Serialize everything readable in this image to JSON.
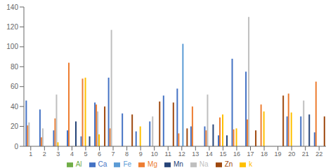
{
  "chart_data": {
    "type": "bar",
    "categories": [
      1,
      2,
      3,
      4,
      5,
      6,
      7,
      8,
      9,
      10,
      11,
      12,
      13,
      14,
      15,
      16,
      17,
      18,
      19,
      20,
      21,
      22
    ],
    "series": [
      {
        "name": "Ca",
        "color": "#4472C4",
        "values": [
          46,
          37,
          16,
          16,
          10,
          44,
          69,
          33,
          15,
          25,
          51,
          58,
          20,
          20,
          11,
          88,
          75,
          0,
          0,
          30,
          30,
          14
        ]
      },
      {
        "name": "Mg",
        "color": "#ED7D31",
        "values": [
          21,
          9,
          28,
          84,
          68,
          42,
          18,
          0,
          0,
          0,
          0,
          13,
          40,
          16,
          29,
          17,
          27,
          42,
          0,
          53,
          0,
          65
        ]
      },
      {
        "name": "Na",
        "color": "#BFBFBF",
        "values": [
          24,
          18,
          52,
          0,
          0,
          35,
          117,
          0,
          0,
          30,
          0,
          0,
          0,
          52,
          0,
          0,
          130,
          0,
          0,
          0,
          46,
          0
        ]
      },
      {
        "name": "k",
        "color": "#FFC000",
        "values": [
          0,
          0,
          4,
          0,
          69,
          12,
          0,
          0,
          20,
          0,
          0,
          0,
          0,
          0,
          32,
          18,
          0,
          35,
          0,
          34,
          0,
          0
        ]
      },
      {
        "name": "Fe",
        "color": "#5B9BD5",
        "values": [
          0,
          0,
          0,
          0,
          0,
          0,
          0,
          0,
          0,
          0,
          0,
          103,
          0,
          0,
          0,
          0,
          0,
          0,
          0,
          0,
          0,
          0
        ]
      },
      {
        "name": "Al",
        "color": "#70AD47",
        "values": [
          0,
          0,
          0,
          0,
          0,
          0,
          0,
          0,
          0,
          0,
          0,
          0,
          0,
          0,
          0,
          0,
          0,
          0,
          0,
          0,
          0,
          0
        ]
      },
      {
        "name": "Mn",
        "color": "#264478",
        "values": [
          0,
          0,
          0,
          25,
          10,
          0,
          0,
          0,
          0,
          0,
          0,
          0,
          0,
          22,
          11,
          0,
          0,
          0,
          0,
          0,
          32,
          0
        ]
      },
      {
        "name": "Zn",
        "color": "#9E480E",
        "values": [
          0,
          0,
          0,
          0,
          0,
          40,
          0,
          32,
          0,
          45,
          44,
          18,
          0,
          0,
          0,
          0,
          16,
          0,
          51,
          0,
          0,
          30
        ]
      }
    ],
    "ylim": [
      0,
      140
    ],
    "yticks": [
      0,
      20,
      40,
      60,
      80,
      100,
      120,
      140
    ],
    "grid": false,
    "legend": "bottom"
  }
}
